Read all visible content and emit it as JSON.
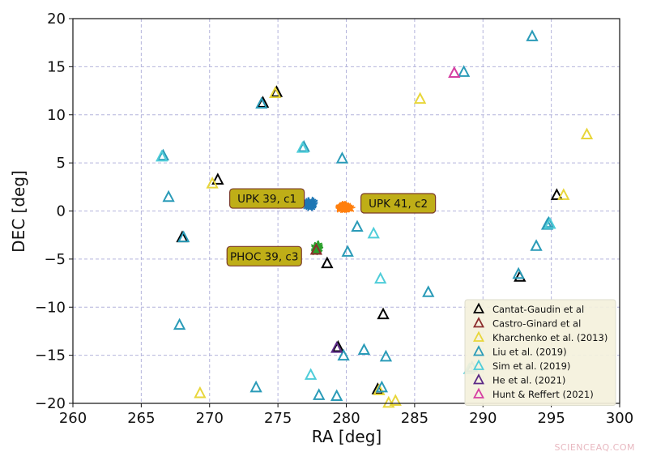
{
  "watermark": "SCIENCEAQ.COM",
  "chart_data": {
    "type": "scatter",
    "xlabel": "RA  [deg]",
    "ylabel": "DEC  [deg]",
    "xlim": [
      260,
      300
    ],
    "ylim": [
      -20,
      20
    ],
    "xticks": [
      260,
      265,
      270,
      275,
      280,
      285,
      290,
      295,
      300
    ],
    "yticks": [
      -20,
      -15,
      -10,
      -5,
      0,
      5,
      10,
      15,
      20
    ],
    "grid": true,
    "grid_style": "dashed",
    "legend_position": "bottom-right",
    "clusters": [
      {
        "label": "UPK 39, c1",
        "color": "#1f77b4",
        "center": [
          277.4,
          0.7
        ],
        "spread": [
          0.45,
          0.45
        ],
        "n": 60
      },
      {
        "label": "UPK 41, c2",
        "color": "#ff7f0e",
        "center": [
          279.9,
          0.4
        ],
        "spread": [
          0.6,
          0.35
        ],
        "n": 70
      },
      {
        "label": "PHOC 39, c3",
        "color": "#2ca02c",
        "center": [
          277.9,
          -3.9
        ],
        "spread": [
          0.25,
          0.55
        ],
        "n": 40
      }
    ],
    "annotations": [
      {
        "text": "UPK 39, c1",
        "anchor": [
          274.2,
          1.3
        ]
      },
      {
        "text": "UPK 41, c2",
        "anchor": [
          283.8,
          0.8
        ]
      },
      {
        "text": "PHOC 39, c3",
        "anchor": [
          274.0,
          -4.7
        ]
      }
    ],
    "series": [
      {
        "name": "Cantat-Gaudin et al",
        "color": "#000000",
        "points": [
          [
            270.6,
            3.2
          ],
          [
            268.0,
            -2.8
          ],
          [
            274.9,
            12.3
          ],
          [
            273.9,
            11.2
          ],
          [
            282.3,
            -18.6
          ],
          [
            292.7,
            -6.9
          ],
          [
            295.4,
            1.6
          ],
          [
            279.4,
            -14.2
          ],
          [
            282.7,
            -10.8
          ],
          [
            278.6,
            -5.5
          ]
        ]
      },
      {
        "name": "Castro-Ginard et al",
        "color": "#8c2d2d",
        "points": [
          [
            277.8,
            -4.1
          ]
        ]
      },
      {
        "name": "Kharchenko et al. (2013)",
        "color": "#e8d63a",
        "points": [
          [
            270.2,
            2.8
          ],
          [
            274.8,
            12.2
          ],
          [
            285.4,
            11.6
          ],
          [
            297.6,
            7.9
          ],
          [
            295.9,
            1.6
          ],
          [
            269.3,
            -19.0
          ],
          [
            282.4,
            -18.7
          ],
          [
            283.1,
            -20.0
          ],
          [
            283.6,
            -19.8
          ]
        ]
      },
      {
        "name": "Liu et al. (2019)",
        "color": "#2a9bb8",
        "points": [
          [
            293.6,
            18.1
          ],
          [
            288.6,
            14.4
          ],
          [
            273.8,
            11.1
          ],
          [
            266.6,
            5.7
          ],
          [
            276.9,
            6.6
          ],
          [
            279.7,
            5.4
          ],
          [
            267.0,
            1.4
          ],
          [
            280.1,
            -4.3
          ],
          [
            280.8,
            -1.7
          ],
          [
            293.9,
            -3.7
          ],
          [
            294.8,
            -1.3
          ],
          [
            286.0,
            -8.5
          ],
          [
            292.6,
            -6.6
          ],
          [
            268.1,
            -2.8
          ],
          [
            267.8,
            -11.9
          ],
          [
            273.4,
            -18.4
          ],
          [
            278.0,
            -19.2
          ],
          [
            279.3,
            -19.3
          ],
          [
            281.3,
            -14.5
          ],
          [
            282.9,
            -15.2
          ],
          [
            282.6,
            -18.4
          ],
          [
            279.8,
            -15.1
          ],
          [
            289.2,
            -16.3
          ],
          [
            294.7,
            -1.5
          ]
        ]
      },
      {
        "name": "Sim et al. (2019)",
        "color": "#4fcdd9",
        "points": [
          [
            277.4,
            -17.1
          ],
          [
            282.5,
            -7.1
          ],
          [
            282.0,
            -2.4
          ],
          [
            266.5,
            5.6
          ],
          [
            276.8,
            6.5
          ],
          [
            289.0,
            -16.5
          ],
          [
            294.9,
            -1.4
          ]
        ]
      },
      {
        "name": "He et al. (2021)",
        "color": "#5b2a86",
        "points": [
          [
            279.3,
            -14.3
          ]
        ]
      },
      {
        "name": "Hunt & Reffert (2021)",
        "color": "#d63fa2",
        "points": [
          [
            287.9,
            14.3
          ]
        ]
      }
    ]
  }
}
